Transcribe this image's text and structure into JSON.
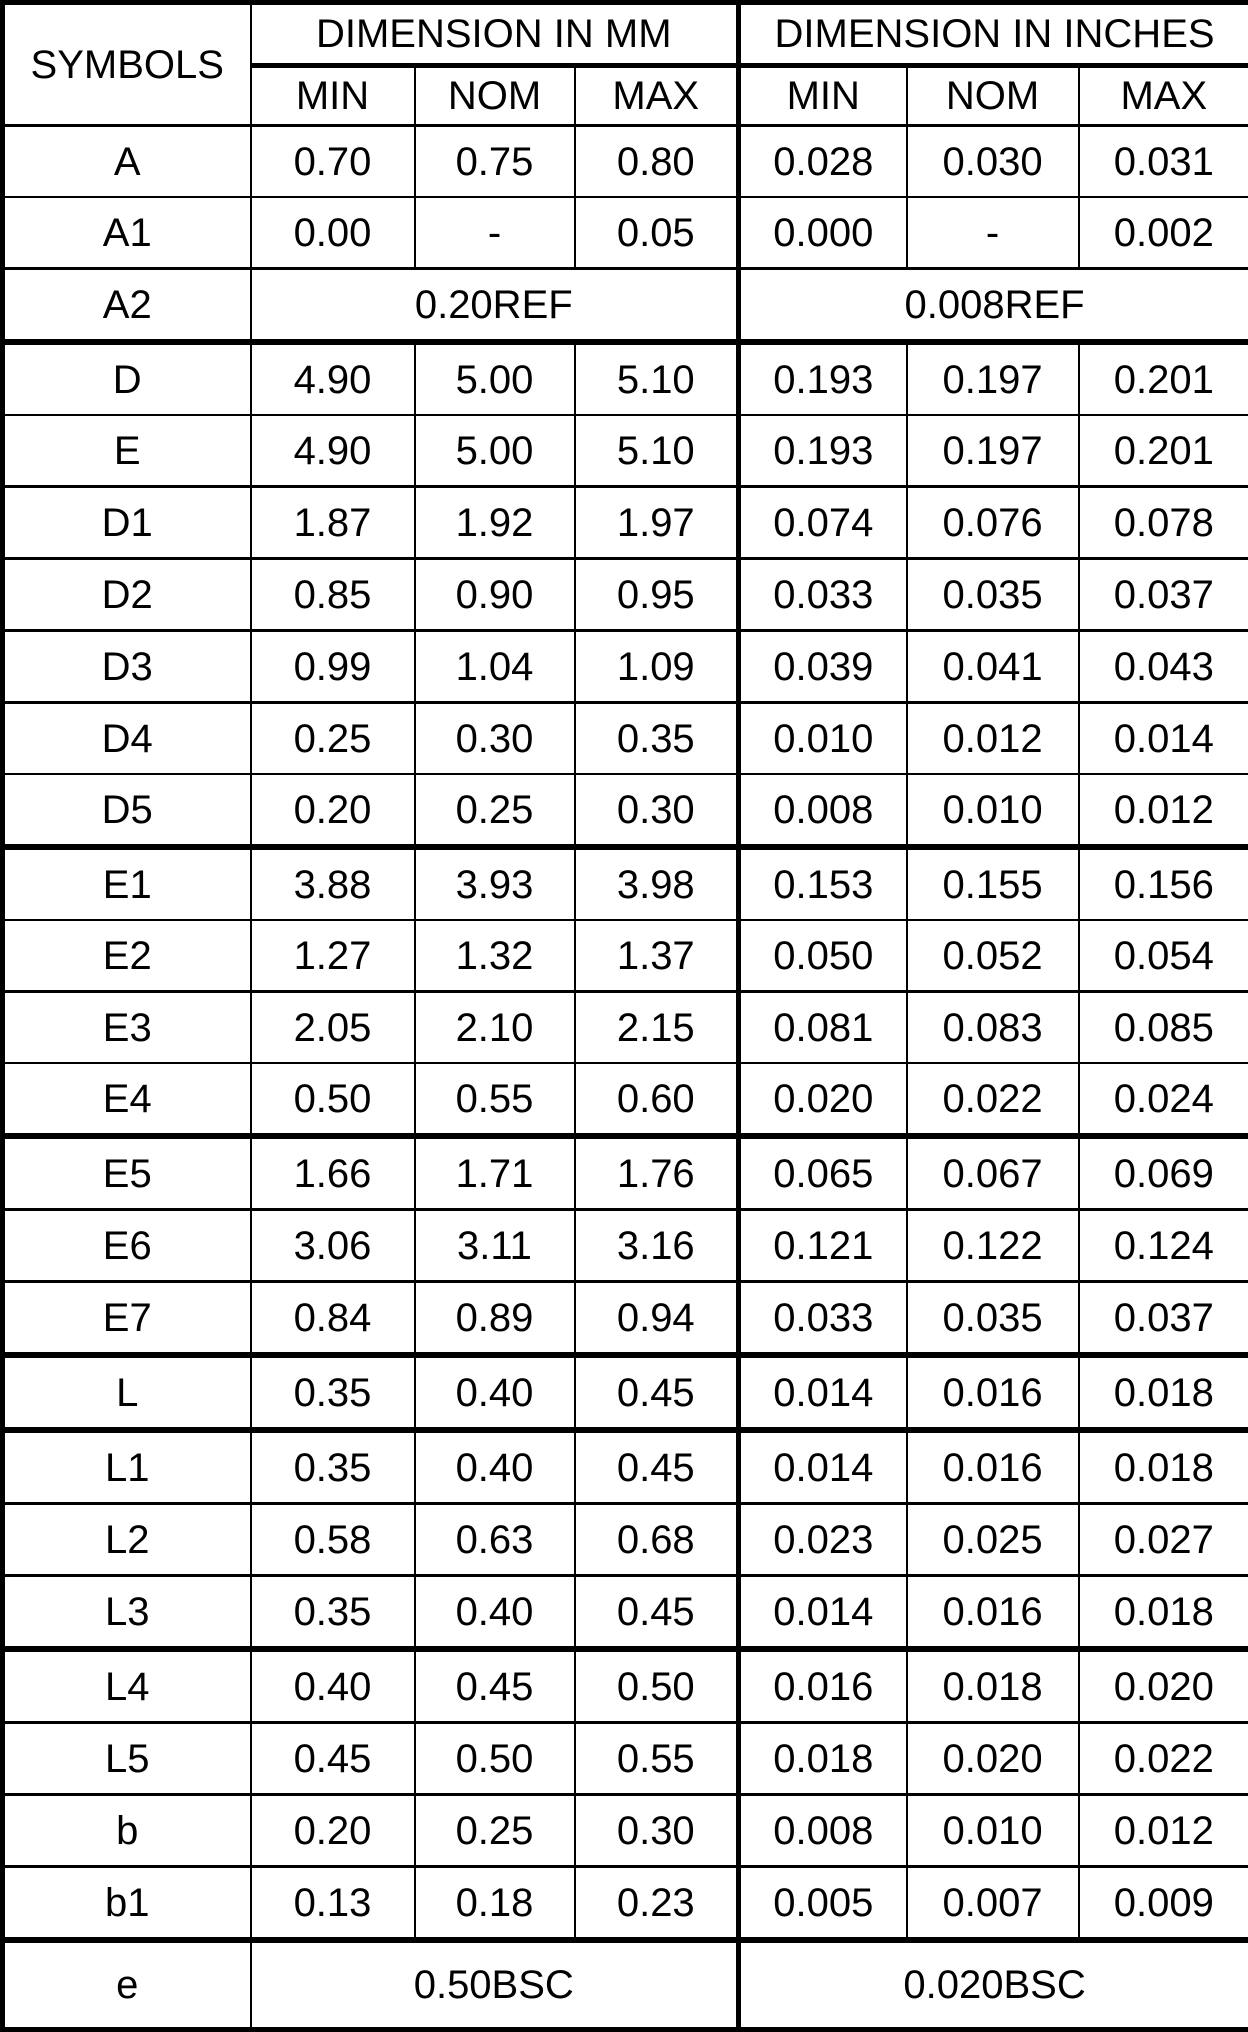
{
  "table": {
    "header": {
      "symbols_label": "SYMBOLS",
      "mm_group_label": "DIMENSION IN MM",
      "inches_group_label": "DIMENSION IN INCHES",
      "sub_headers": [
        "MIN",
        "NOM",
        "MAX"
      ]
    },
    "rows": [
      {
        "symbol": "A",
        "mm": [
          "0.70",
          "0.75",
          "0.80"
        ],
        "inches": [
          "0.028",
          "0.030",
          "0.031"
        ],
        "sep": "m"
      },
      {
        "symbol": "A1",
        "mm": [
          "0.00",
          "-",
          "0.05"
        ],
        "inches": [
          "0.000",
          "-",
          "0.002"
        ],
        "sep": "t"
      },
      {
        "symbol": "A2",
        "mm_span": "0.20REF",
        "inches_span": "0.008REF",
        "sep": "m"
      },
      {
        "symbol": "D",
        "mm": [
          "4.90",
          "5.00",
          "5.10"
        ],
        "inches": [
          "0.193",
          "0.197",
          "0.201"
        ],
        "sep": "T"
      },
      {
        "symbol": "E",
        "mm": [
          "4.90",
          "5.00",
          "5.10"
        ],
        "inches": [
          "0.193",
          "0.197",
          "0.201"
        ],
        "sep": "t"
      },
      {
        "symbol": "D1",
        "mm": [
          "1.87",
          "1.92",
          "1.97"
        ],
        "inches": [
          "0.074",
          "0.076",
          "0.078"
        ],
        "sep": "m"
      },
      {
        "symbol": "D2",
        "mm": [
          "0.85",
          "0.90",
          "0.95"
        ],
        "inches": [
          "0.033",
          "0.035",
          "0.037"
        ],
        "sep": "m"
      },
      {
        "symbol": "D3",
        "mm": [
          "0.99",
          "1.04",
          "1.09"
        ],
        "inches": [
          "0.039",
          "0.041",
          "0.043"
        ],
        "sep": "m"
      },
      {
        "symbol": "D4",
        "mm": [
          "0.25",
          "0.30",
          "0.35"
        ],
        "inches": [
          "0.010",
          "0.012",
          "0.014"
        ],
        "sep": "m"
      },
      {
        "symbol": "D5",
        "mm": [
          "0.20",
          "0.25",
          "0.30"
        ],
        "inches": [
          "0.008",
          "0.010",
          "0.012"
        ],
        "sep": "t"
      },
      {
        "symbol": "E1",
        "mm": [
          "3.88",
          "3.93",
          "3.98"
        ],
        "inches": [
          "0.153",
          "0.155",
          "0.156"
        ],
        "sep": "T"
      },
      {
        "symbol": "E2",
        "mm": [
          "1.27",
          "1.32",
          "1.37"
        ],
        "inches": [
          "0.050",
          "0.052",
          "0.054"
        ],
        "sep": "t"
      },
      {
        "symbol": "E3",
        "mm": [
          "2.05",
          "2.10",
          "2.15"
        ],
        "inches": [
          "0.081",
          "0.083",
          "0.085"
        ],
        "sep": "m"
      },
      {
        "symbol": "E4",
        "mm": [
          "0.50",
          "0.55",
          "0.60"
        ],
        "inches": [
          "0.020",
          "0.022",
          "0.024"
        ],
        "sep": "t"
      },
      {
        "symbol": "E5",
        "mm": [
          "1.66",
          "1.71",
          "1.76"
        ],
        "inches": [
          "0.065",
          "0.067",
          "0.069"
        ],
        "sep": "T"
      },
      {
        "symbol": "E6",
        "mm": [
          "3.06",
          "3.11",
          "3.16"
        ],
        "inches": [
          "0.121",
          "0.122",
          "0.124"
        ],
        "sep": "m"
      },
      {
        "symbol": "E7",
        "mm": [
          "0.84",
          "0.89",
          "0.94"
        ],
        "inches": [
          "0.033",
          "0.035",
          "0.037"
        ],
        "sep": "m"
      },
      {
        "symbol": "L",
        "mm": [
          "0.35",
          "0.40",
          "0.45"
        ],
        "inches": [
          "0.014",
          "0.016",
          "0.018"
        ],
        "sep": "T"
      },
      {
        "symbol": "L1",
        "mm": [
          "0.35",
          "0.40",
          "0.45"
        ],
        "inches": [
          "0.014",
          "0.016",
          "0.018"
        ],
        "sep": "T"
      },
      {
        "symbol": "L2",
        "mm": [
          "0.58",
          "0.63",
          "0.68"
        ],
        "inches": [
          "0.023",
          "0.025",
          "0.027"
        ],
        "sep": "m"
      },
      {
        "symbol": "L3",
        "mm": [
          "0.35",
          "0.40",
          "0.45"
        ],
        "inches": [
          "0.014",
          "0.016",
          "0.018"
        ],
        "sep": "m"
      },
      {
        "symbol": "L4",
        "mm": [
          "0.40",
          "0.45",
          "0.50"
        ],
        "inches": [
          "0.016",
          "0.018",
          "0.020"
        ],
        "sep": "T"
      },
      {
        "symbol": "L5",
        "mm": [
          "0.45",
          "0.50",
          "0.55"
        ],
        "inches": [
          "0.018",
          "0.020",
          "0.022"
        ],
        "sep": "m"
      },
      {
        "symbol": "b",
        "mm": [
          "0.20",
          "0.25",
          "0.30"
        ],
        "inches": [
          "0.008",
          "0.010",
          "0.012"
        ],
        "sep": "m"
      },
      {
        "symbol": "b1",
        "mm": [
          "0.13",
          "0.18",
          "0.23"
        ],
        "inches": [
          "0.005",
          "0.007",
          "0.009"
        ],
        "sep": "m"
      },
      {
        "symbol": "e",
        "mm_span": "0.50BSC",
        "inches_span": "0.020BSC",
        "sep": "T"
      }
    ]
  },
  "colors": {
    "text": "#000000",
    "border": "#000000",
    "background": "#ffffff"
  }
}
